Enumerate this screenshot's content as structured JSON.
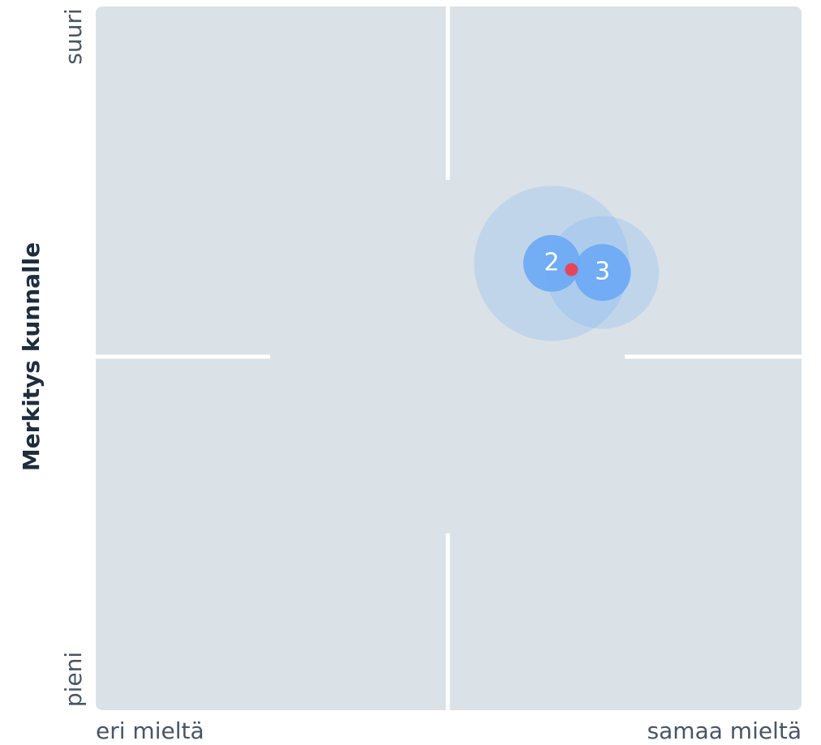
{
  "chart_data": {
    "type": "scatter",
    "ylabel": "Merkitys kunnalle",
    "y_low": "pieni",
    "y_high": "suuri",
    "x_low": "eri mieltä",
    "x_high": "samaa mieltä",
    "xlim": [
      0,
      1
    ],
    "ylim": [
      0,
      1
    ],
    "color": "#6aa9f5",
    "points": [
      {
        "label": "2",
        "x": 0.646,
        "y": 0.635,
        "size": 0.11
      },
      {
        "label": "3",
        "x": 0.718,
        "y": 0.622,
        "size": 0.08
      }
    ],
    "mean": {
      "x": 0.674,
      "y": 0.626,
      "color": "#e8445a"
    }
  }
}
